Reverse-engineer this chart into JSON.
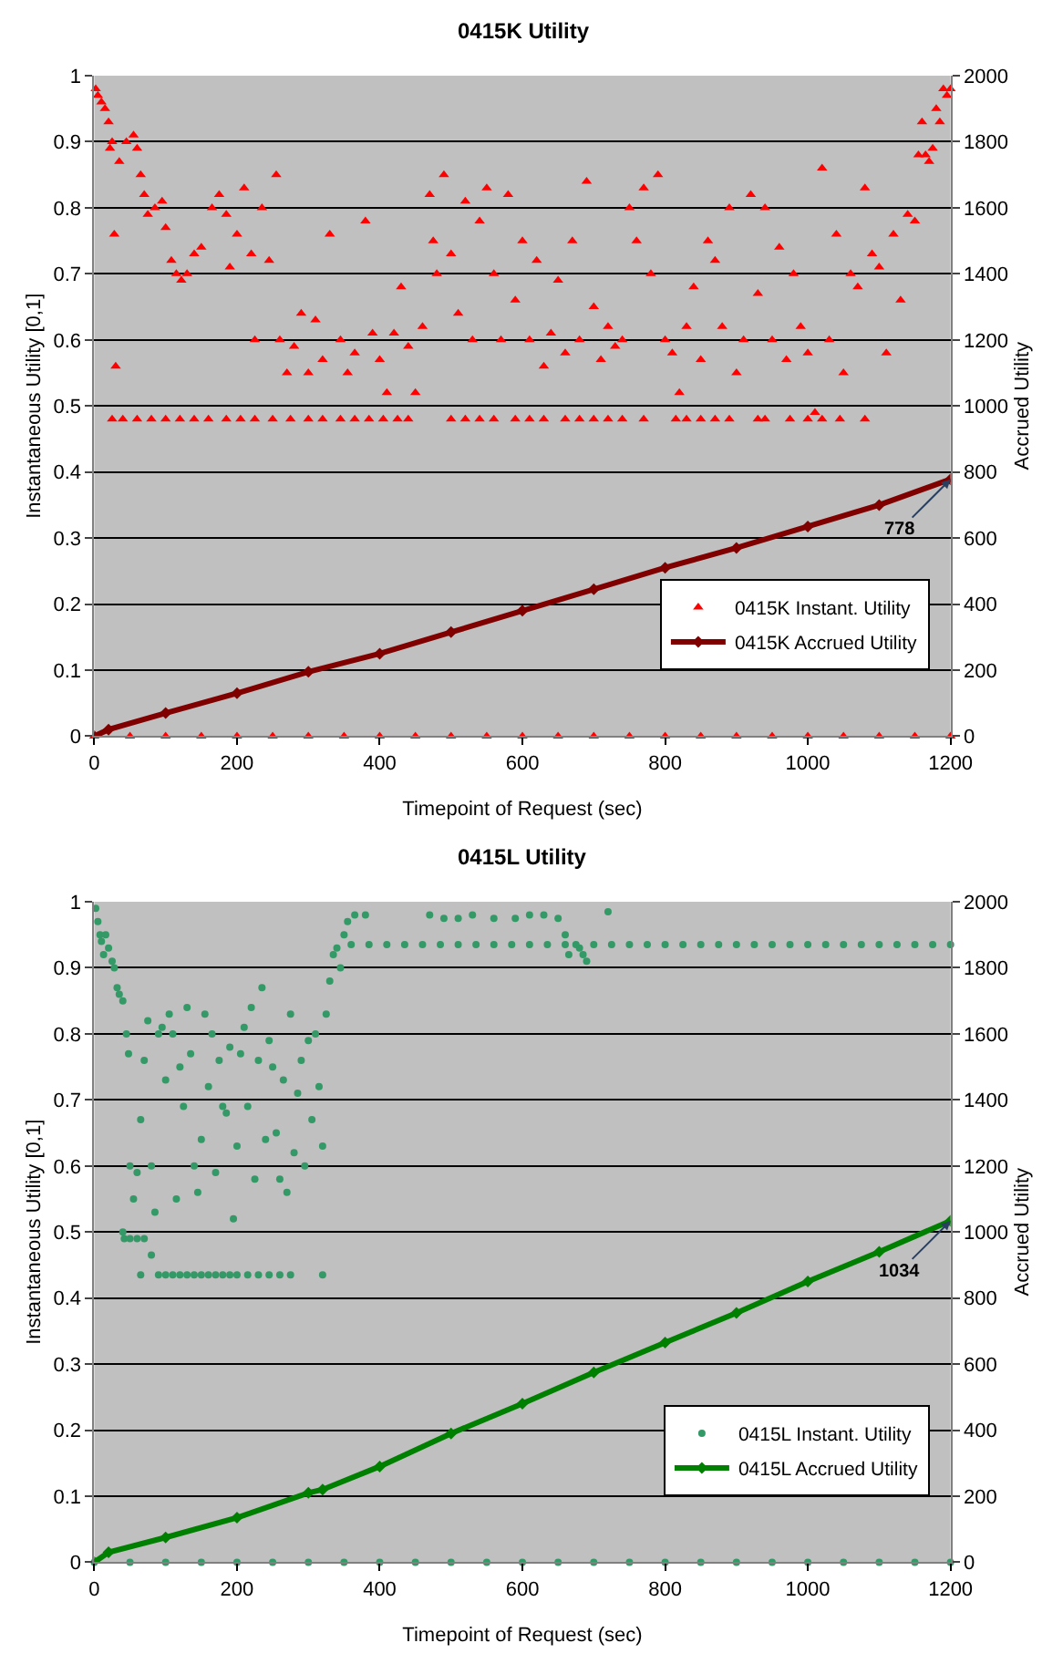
{
  "chart_data": [
    {
      "type": "scatter",
      "title": "0415K Utility",
      "xlabel": "Timepoint of Request (sec)",
      "ylabel": "Instantaneous Utility [0,1]",
      "y2label": "Accrued Utility",
      "xlim": [
        0,
        1200
      ],
      "xticks": [
        0,
        200,
        400,
        600,
        800,
        1000,
        1200
      ],
      "ylim": [
        0,
        1
      ],
      "yticks": [
        0,
        0.1,
        0.2,
        0.3,
        0.4,
        0.5,
        0.6,
        0.7,
        0.8,
        0.9,
        1
      ],
      "y2lim": [
        0,
        2000
      ],
      "y2ticks": [
        0,
        200,
        400,
        600,
        800,
        1000,
        1200,
        1400,
        1600,
        1800,
        2000
      ],
      "grid": "y",
      "legend": "bottom right",
      "annotations": [
        {
          "text": "778",
          "x": 1200,
          "y": 0.389
        }
      ],
      "series": [
        {
          "name": "0415K Instant. Utility",
          "type": "scatter",
          "marker": "triangle",
          "color": "#ff0000",
          "x": [
            2,
            5,
            10,
            15,
            20,
            22,
            25,
            28,
            30,
            35,
            45,
            55,
            60,
            65,
            70,
            75,
            85,
            95,
            100,
            108,
            115,
            122,
            130,
            140,
            150,
            165,
            175,
            185,
            190,
            200,
            210,
            220,
            225,
            235,
            245,
            255,
            260,
            270,
            280,
            290,
            300,
            310,
            320,
            330,
            345,
            355,
            365,
            380,
            390,
            400,
            410,
            420,
            430,
            440,
            450,
            460,
            470,
            475,
            480,
            490,
            500,
            510,
            520,
            530,
            540,
            550,
            560,
            570,
            580,
            590,
            600,
            610,
            620,
            630,
            640,
            650,
            660,
            670,
            680,
            690,
            700,
            710,
            720,
            730,
            740,
            750,
            760,
            770,
            780,
            790,
            800,
            810,
            820,
            830,
            840,
            850,
            860,
            870,
            880,
            890,
            900,
            910,
            920,
            930,
            940,
            950,
            960,
            970,
            980,
            990,
            1000,
            1010,
            1020,
            1030,
            1040,
            1050,
            1060,
            1070,
            1080,
            1090,
            1100,
            1110,
            1120,
            1130,
            1140,
            1150,
            1155,
            1160,
            1165,
            1170,
            1175,
            1180,
            1185,
            1190,
            1195,
            1200,
            25,
            40,
            60,
            80,
            100,
            120,
            140,
            160,
            185,
            205,
            225,
            250,
            275,
            300,
            320,
            345,
            365,
            385,
            405,
            425,
            440,
            500,
            520,
            540,
            560,
            590,
            610,
            630,
            660,
            680,
            700,
            720,
            740,
            770,
            815,
            830,
            850,
            870,
            890,
            930,
            940,
            975,
            1000,
            1020,
            1045,
            1080,
            0,
            50,
            100,
            150,
            200,
            250,
            300,
            350,
            400,
            450,
            500,
            550,
            600,
            650,
            700,
            750,
            800,
            850,
            900,
            950,
            1000,
            1050,
            1100,
            1150,
            1200
          ],
          "values": [
            0.98,
            0.97,
            0.96,
            0.95,
            0.93,
            0.89,
            0.9,
            0.76,
            0.56,
            0.87,
            0.9,
            0.91,
            0.89,
            0.85,
            0.82,
            0.79,
            0.8,
            0.81,
            0.77,
            0.72,
            0.7,
            0.69,
            0.7,
            0.73,
            0.74,
            0.8,
            0.82,
            0.79,
            0.71,
            0.76,
            0.83,
            0.73,
            0.6,
            0.8,
            0.72,
            0.85,
            0.6,
            0.55,
            0.59,
            0.64,
            0.55,
            0.63,
            0.57,
            0.76,
            0.6,
            0.55,
            0.58,
            0.78,
            0.61,
            0.57,
            0.52,
            0.61,
            0.68,
            0.59,
            0.52,
            0.62,
            0.82,
            0.75,
            0.7,
            0.85,
            0.73,
            0.64,
            0.81,
            0.6,
            0.78,
            0.83,
            0.7,
            0.6,
            0.82,
            0.66,
            0.75,
            0.6,
            0.72,
            0.56,
            0.61,
            0.69,
            0.58,
            0.75,
            0.6,
            0.84,
            0.65,
            0.57,
            0.62,
            0.59,
            0.6,
            0.8,
            0.75,
            0.83,
            0.7,
            0.85,
            0.6,
            0.58,
            0.52,
            0.62,
            0.68,
            0.57,
            0.75,
            0.72,
            0.62,
            0.8,
            0.55,
            0.6,
            0.82,
            0.67,
            0.8,
            0.6,
            0.74,
            0.57,
            0.7,
            0.62,
            0.58,
            0.49,
            0.86,
            0.6,
            0.76,
            0.55,
            0.7,
            0.68,
            0.83,
            0.73,
            0.71,
            0.58,
            0.76,
            0.66,
            0.79,
            0.78,
            0.88,
            0.93,
            0.88,
            0.87,
            0.89,
            0.95,
            0.93,
            0.98,
            0.97,
            0.98,
            0.48,
            0.48,
            0.48,
            0.48,
            0.48,
            0.48,
            0.48,
            0.48,
            0.48,
            0.48,
            0.48,
            0.48,
            0.48,
            0.48,
            0.48,
            0.48,
            0.48,
            0.48,
            0.48,
            0.48,
            0.48,
            0.48,
            0.48,
            0.48,
            0.48,
            0.48,
            0.48,
            0.48,
            0.48,
            0.48,
            0.48,
            0.48,
            0.48,
            0.48,
            0.48,
            0.48,
            0.48,
            0.48,
            0.48,
            0.48,
            0.48,
            0.48,
            0.48,
            0.48,
            0.48,
            0.48,
            0,
            0,
            0,
            0,
            0,
            0,
            0,
            0,
            0,
            0,
            0,
            0,
            0,
            0,
            0,
            0,
            0,
            0,
            0,
            0,
            0,
            0,
            0,
            0,
            0
          ]
        },
        {
          "name": "0415K Accrued Utility",
          "type": "line",
          "axis": "y2",
          "marker": "diamond",
          "line_style": "solid",
          "color": "#800000",
          "x": [
            0,
            20,
            100,
            200,
            300,
            400,
            500,
            600,
            700,
            800,
            900,
            1000,
            1100,
            1200
          ],
          "values": [
            0,
            20,
            70,
            130,
            195,
            250,
            315,
            380,
            445,
            510,
            570,
            635,
            700,
            778
          ]
        }
      ]
    },
    {
      "type": "scatter",
      "title": "0415L Utility",
      "xlabel": "Timepoint of Request (sec)",
      "ylabel": "Instantaneous Utility [0,1]",
      "y2label": "Accrued Utility",
      "xlim": [
        0,
        1200
      ],
      "xticks": [
        0,
        200,
        400,
        600,
        800,
        1000,
        1200
      ],
      "ylim": [
        0,
        1
      ],
      "yticks": [
        0,
        0.1,
        0.2,
        0.3,
        0.4,
        0.5,
        0.6,
        0.7,
        0.8,
        0.9,
        1
      ],
      "y2lim": [
        0,
        2000
      ],
      "y2ticks": [
        0,
        200,
        400,
        600,
        800,
        1000,
        1200,
        1400,
        1600,
        1800,
        2000
      ],
      "grid": "y",
      "legend": "bottom right",
      "annotations": [
        {
          "text": "1034",
          "x": 1200,
          "y": 0.517
        }
      ],
      "series": [
        {
          "name": "0415L Instant. Utility",
          "type": "scatter",
          "marker": "circle",
          "color": "#339966",
          "x": [
            2,
            5,
            8,
            10,
            13,
            16,
            20,
            25,
            28,
            32,
            35,
            40,
            45,
            48,
            50,
            55,
            60,
            65,
            70,
            75,
            80,
            85,
            90,
            95,
            100,
            105,
            110,
            115,
            120,
            125,
            130,
            135,
            140,
            145,
            150,
            155,
            160,
            165,
            170,
            175,
            180,
            185,
            190,
            195,
            200,
            205,
            210,
            215,
            220,
            225,
            230,
            235,
            240,
            245,
            250,
            255,
            260,
            265,
            270,
            275,
            280,
            285,
            290,
            295,
            300,
            305,
            310,
            315,
            320,
            325,
            330,
            335,
            340,
            345,
            350,
            355,
            365,
            380,
            470,
            490,
            510,
            530,
            560,
            590,
            610,
            630,
            650,
            660,
            665,
            680,
            685,
            690,
            720,
            360,
            385,
            410,
            435,
            460,
            485,
            510,
            535,
            560,
            585,
            610,
            635,
            660,
            675,
            700,
            725,
            750,
            775,
            800,
            825,
            850,
            875,
            900,
            925,
            950,
            975,
            1000,
            1025,
            1050,
            1075,
            1100,
            1125,
            1150,
            1175,
            1200,
            40,
            42,
            50,
            60,
            70,
            80,
            65,
            90,
            100,
            110,
            120,
            130,
            140,
            150,
            160,
            170,
            180,
            190,
            200,
            215,
            230,
            245,
            260,
            275,
            320,
            0,
            50,
            100,
            150,
            200,
            250,
            300,
            350,
            400,
            450,
            500,
            550,
            600,
            650,
            700,
            750,
            800,
            850,
            900,
            950,
            1000,
            1050,
            1100,
            1150,
            1200
          ],
          "values": [
            0.99,
            0.97,
            0.95,
            0.94,
            0.92,
            0.95,
            0.93,
            0.91,
            0.9,
            0.87,
            0.86,
            0.85,
            0.8,
            0.77,
            0.6,
            0.55,
            0.59,
            0.67,
            0.76,
            0.82,
            0.6,
            0.53,
            0.8,
            0.81,
            0.73,
            0.83,
            0.8,
            0.55,
            0.75,
            0.69,
            0.84,
            0.77,
            0.6,
            0.56,
            0.64,
            0.83,
            0.72,
            0.8,
            0.59,
            0.76,
            0.69,
            0.68,
            0.78,
            0.52,
            0.63,
            0.77,
            0.81,
            0.69,
            0.84,
            0.58,
            0.76,
            0.87,
            0.64,
            0.79,
            0.75,
            0.65,
            0.58,
            0.73,
            0.56,
            0.83,
            0.62,
            0.71,
            0.76,
            0.6,
            0.79,
            0.67,
            0.8,
            0.72,
            0.63,
            0.83,
            0.88,
            0.92,
            0.93,
            0.9,
            0.95,
            0.97,
            0.98,
            0.98,
            0.98,
            0.975,
            0.975,
            0.98,
            0.975,
            0.975,
            0.98,
            0.98,
            0.975,
            0.95,
            0.92,
            0.93,
            0.92,
            0.91,
            0.985,
            0.935,
            0.935,
            0.935,
            0.935,
            0.935,
            0.935,
            0.935,
            0.935,
            0.935,
            0.935,
            0.935,
            0.935,
            0.935,
            0.935,
            0.935,
            0.935,
            0.935,
            0.935,
            0.935,
            0.935,
            0.935,
            0.935,
            0.935,
            0.935,
            0.935,
            0.935,
            0.935,
            0.935,
            0.935,
            0.935,
            0.935,
            0.935,
            0.935,
            0.935,
            0.935,
            0.5,
            0.49,
            0.49,
            0.49,
            0.49,
            0.465,
            0.435,
            0.435,
            0.435,
            0.435,
            0.435,
            0.435,
            0.435,
            0.435,
            0.435,
            0.435,
            0.435,
            0.435,
            0.435,
            0.435,
            0.435,
            0.435,
            0.435,
            0.435,
            0.435,
            0,
            0,
            0,
            0,
            0,
            0,
            0,
            0,
            0,
            0,
            0,
            0,
            0,
            0,
            0,
            0,
            0,
            0,
            0,
            0,
            0,
            0,
            0,
            0,
            0
          ]
        },
        {
          "name": "0415L Accrued Utility",
          "type": "line",
          "axis": "y2",
          "marker": "diamond",
          "line_style": "solid",
          "color": "#008000",
          "x": [
            0,
            20,
            100,
            200,
            300,
            320,
            400,
            500,
            600,
            700,
            800,
            900,
            1000,
            1100,
            1200
          ],
          "values": [
            0,
            30,
            75,
            135,
            210,
            220,
            290,
            390,
            480,
            575,
            665,
            755,
            850,
            940,
            1034
          ]
        }
      ]
    }
  ]
}
